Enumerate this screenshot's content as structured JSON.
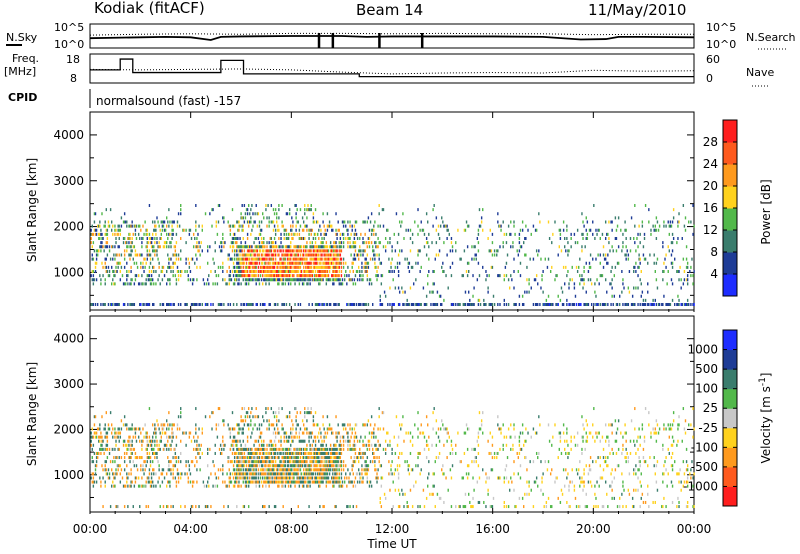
{
  "header": {
    "station": "Kodiak (fitACF)",
    "beam": "Beam 14",
    "date": "11/May/2010"
  },
  "left_labels": {
    "nsky": "N.Sky",
    "freq_1": "Freq.",
    "freq_2": "[MHz]",
    "cpid": "CPID"
  },
  "right_labels": {
    "nsearch": "N.Search",
    "nave": "Nave"
  },
  "cpid_text": "normalsound (fast) -157",
  "strip_ticks": {
    "noise_left_top": "10^5",
    "noise_left_bottom": "10^0",
    "noise_right_top": "10^5",
    "noise_right_bottom": "10^0",
    "freq_top": "18",
    "freq_bottom": "8",
    "nave_top": "60",
    "nave_bottom": "0"
  },
  "colors": {
    "power_scale": [
      "#1e2dff",
      "#1e3c96",
      "#3a7d6d",
      "#52b84a",
      "#ffd21e",
      "#ff9a1e",
      "#ff5a1e",
      "#ff1e1e"
    ],
    "velocity_scale": [
      "#1e2dff",
      "#1e3c96",
      "#3a7d6d",
      "#52b84a",
      "#c8c8c8",
      "#ffd21e",
      "#ff9a1e",
      "#ff5a1e",
      "#ff1e1e"
    ],
    "velocity_colorbar": [
      "#ff1e1e",
      "#ff5a1e",
      "#ff9a1e",
      "#ffd21e",
      "#c8c8c8",
      "#52b84a",
      "#3a7d6d",
      "#1e3c96",
      "#1e2dff"
    ]
  },
  "chart_data": [
    {
      "type": "heatmap",
      "panel": "power",
      "ylabel": "Slant Range [km]",
      "yticks": [
        "1000",
        "2000",
        "3000",
        "4000"
      ],
      "ylim": [
        180,
        4500
      ],
      "xlim": [
        0,
        24
      ],
      "colorbar": {
        "label": "Power [dB]",
        "ticks": [
          "4",
          "8",
          "12",
          "16",
          "20",
          "24",
          "28"
        ],
        "range": [
          0,
          30
        ]
      },
      "features": [
        {
          "desc": "persistent near-range echoes",
          "range_km": 300,
          "time_h": [
            0,
            24
          ],
          "power_dB": 6
        },
        {
          "desc": "broad mid-range echoes",
          "range_km": [
            700,
            2100
          ],
          "time_h": [
            0,
            11.5
          ],
          "power_dB": [
            4,
            24
          ]
        },
        {
          "desc": "strong echo region",
          "range_km": [
            850,
            1500
          ],
          "time_h": [
            6.0,
            10.0
          ],
          "power_dB": [
            20,
            28
          ]
        },
        {
          "desc": "scattered echoes",
          "range_km": [
            700,
            2100
          ],
          "time_h": [
            11.5,
            24
          ],
          "power_dB": [
            4,
            16
          ]
        }
      ]
    },
    {
      "type": "heatmap",
      "panel": "velocity",
      "ylabel": "Slant Range [km]",
      "xlabel": "Time UT",
      "yticks": [
        "1000",
        "2000",
        "3000",
        "4000"
      ],
      "xticks": [
        "00:00",
        "04:00",
        "08:00",
        "12:00",
        "16:00",
        "20:00",
        "00:00"
      ],
      "ylim": [
        180,
        4500
      ],
      "xlim": [
        0,
        24
      ],
      "colorbar": {
        "label": "Velocity [m s",
        "label_sup": "-1",
        "label_end": "]",
        "ticks": [
          "-1000",
          "-500",
          "-100",
          "-25",
          "25",
          "100",
          "500",
          "1000"
        ],
        "range": [
          -1000,
          1000
        ]
      },
      "features": [
        {
          "desc": "mixed velocity echoes",
          "range_km": [
            700,
            2100
          ],
          "time_h": [
            0,
            11.5
          ],
          "velocity_ms": [
            -500,
            500
          ]
        },
        {
          "desc": "scattered low velocity echoes",
          "range_km": [
            300,
            2000
          ],
          "time_h": [
            11.5,
            24
          ],
          "velocity_ms": [
            -100,
            100
          ]
        }
      ]
    },
    {
      "type": "line",
      "panel": "noise",
      "series": [
        {
          "name": "N.Sky",
          "x": [
            0,
            1,
            2,
            3,
            4,
            4.8,
            5.2,
            6,
            8,
            9,
            10,
            11,
            12,
            14,
            16,
            18,
            19.5,
            20.5,
            21,
            22,
            24
          ],
          "values": [
            2.0,
            2.1,
            2.2,
            2.3,
            2.2,
            1.6,
            2.3,
            2.4,
            2.5,
            2.5,
            2.5,
            2.3,
            2.4,
            2.4,
            2.4,
            2.3,
            1.7,
            1.8,
            2.3,
            2.3,
            2.2
          ]
        },
        {
          "name": "N.Search",
          "x": [
            0,
            2,
            4,
            6,
            8,
            10,
            12,
            14,
            16,
            18,
            20,
            22,
            24
          ],
          "values": [
            2.7,
            2.9,
            3.0,
            2.9,
            3.1,
            3.1,
            3.0,
            3.1,
            3.0,
            3.0,
            2.8,
            2.9,
            2.9
          ]
        }
      ],
      "spikes_h": [
        9.1,
        9.65,
        11.5,
        13.2
      ],
      "ylim": [
        0,
        5
      ]
    },
    {
      "type": "line",
      "panel": "freq_nave",
      "series": [
        {
          "name": "Freq.",
          "x": [
            0,
            1.2,
            1.2,
            1.7,
            1.7,
            5.2,
            5.2,
            6.1,
            6.1,
            10.7,
            10.7,
            24
          ],
          "values": [
            12.5,
            12.5,
            16.5,
            16.5,
            11.5,
            11.5,
            16.0,
            16.0,
            11.0,
            11.0,
            10.0,
            10.0
          ]
        },
        {
          "name": "Nave",
          "x": [
            0,
            2,
            4,
            6,
            8,
            10,
            12,
            14,
            16,
            18,
            20,
            22,
            24
          ],
          "values": [
            28,
            27,
            28,
            29,
            27,
            22,
            18,
            20,
            21,
            20,
            26,
            24,
            25
          ]
        }
      ],
      "ylim_freq": [
        8,
        18
      ],
      "ylim_nave": [
        0,
        60
      ]
    }
  ]
}
